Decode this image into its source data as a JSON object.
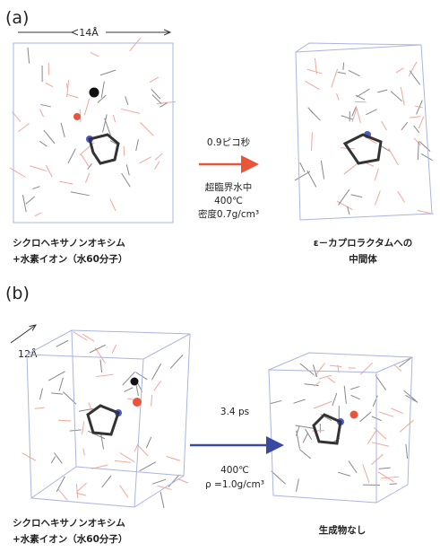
{
  "panels": [
    {
      "label": "(a)",
      "scale": "14Å",
      "above": [
        "0.9ピコ秒"
      ],
      "below": [
        "超臨界水中",
        "400℃",
        "密度0.7g/cm³"
      ],
      "left_caption": [
        "シクロヘキサノンオキシム",
        "+水素イオン（水60分子）"
      ],
      "right_caption": [
        "ε－カプロラクタムへの",
        "中間体"
      ]
    },
    {
      "label": "(b)",
      "scale": "12Å",
      "above": [
        "3.4 ps"
      ],
      "below": [
        "400℃",
        "ρ =1.0g/cm³"
      ],
      "left_caption": [
        "シクロヘキサノンオキシム",
        "+水素イオン（水60分子）"
      ],
      "right_caption": [
        "生成物なし"
      ]
    }
  ]
}
